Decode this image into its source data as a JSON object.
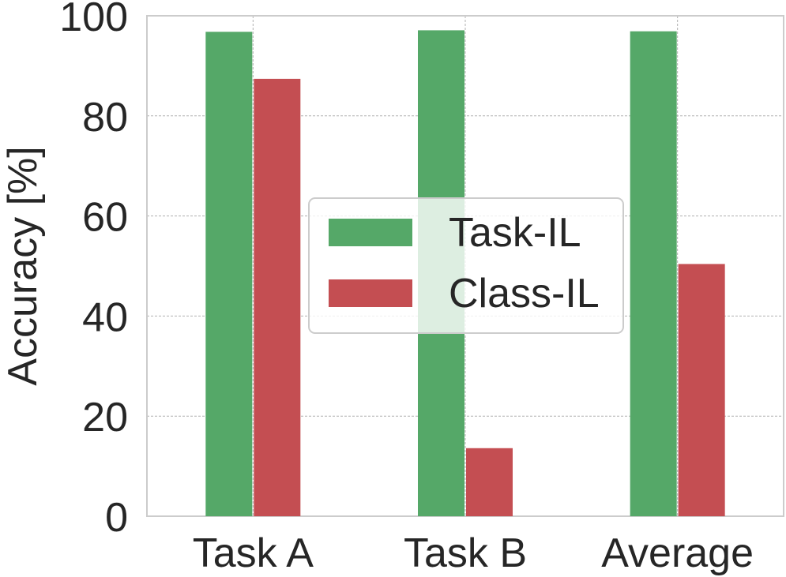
{
  "chart_data": {
    "type": "bar",
    "categories": [
      "Task A",
      "Task B",
      "Average"
    ],
    "series": [
      {
        "name": "Task-IL",
        "values": [
          96.8,
          97.1,
          96.9
        ],
        "color": "#55a868"
      },
      {
        "name": "Class-IL",
        "values": [
          87.4,
          13.6,
          50.4
        ],
        "color": "#c44e52"
      }
    ],
    "title": "",
    "xlabel": "",
    "ylabel": "Accuracy [%]",
    "ylim": [
      0,
      100
    ],
    "yticks": [
      0,
      20,
      40,
      60,
      80,
      100
    ],
    "grid": true,
    "legend_position": "center"
  }
}
